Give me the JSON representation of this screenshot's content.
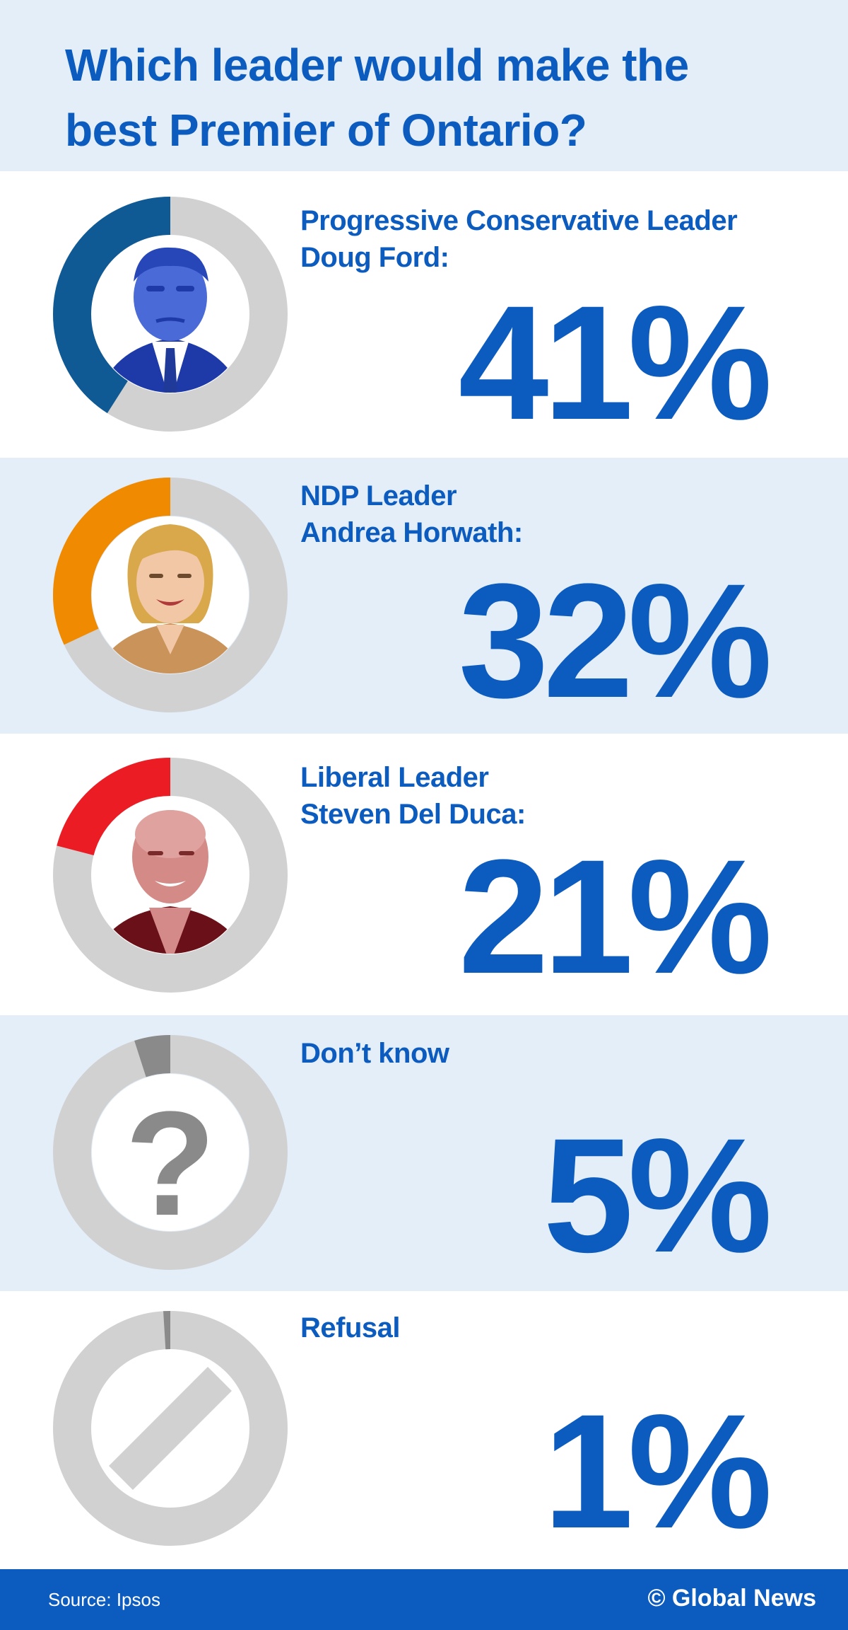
{
  "header": {
    "title": "Which leader would make the best Premier of Ontario?"
  },
  "chart_data": {
    "type": "pie",
    "title": "Which leader would make the best Premier of Ontario?",
    "categories": [
      "Progressive Conservative Leader Doug Ford:",
      "NDP Leader Andrea Horwath:",
      "Liberal Leader Steven Del Duca:",
      "Don’t know",
      "Refusal"
    ],
    "values": [
      41,
      32,
      21,
      5,
      1
    ],
    "value_labels": [
      "41%",
      "32%",
      "21%",
      "5%",
      "1%"
    ],
    "unit": "%",
    "items": [
      {
        "label_lines": [
          "Progressive Conservative Leader",
          "Doug Ford:"
        ],
        "value": 41,
        "value_label": "41%",
        "color": "#0f5a94",
        "icon": "doug-ford-photo"
      },
      {
        "label_lines": [
          "NDP Leader",
          "Andrea Horwath:"
        ],
        "value": 32,
        "value_label": "32%",
        "color": "#f08a00",
        "icon": "andrea-horwath-photo"
      },
      {
        "label_lines": [
          "Liberal Leader",
          "Steven Del Duca:"
        ],
        "value": 21,
        "value_label": "21%",
        "color": "#ec1c24",
        "icon": "steven-del-duca-photo"
      },
      {
        "label_lines": [
          "Don’t know"
        ],
        "value": 5,
        "value_label": "5%",
        "color": "#8a8a8a",
        "icon": "question-mark-icon"
      },
      {
        "label_lines": [
          "Refusal"
        ],
        "value": 1,
        "value_label": "1%",
        "color": "#8a8a8a",
        "icon": "prohibited-icon"
      }
    ],
    "remainder_color": "#d1d1d1"
  },
  "footer": {
    "source": "Source: Ipsos",
    "credit": "© Global News"
  },
  "colors": {
    "accent": "#0c5cbf",
    "band": "#e3eef8"
  }
}
